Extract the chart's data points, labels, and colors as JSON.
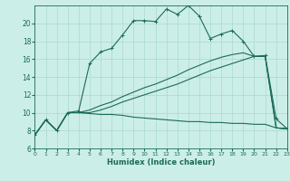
{
  "bg_color": "#cceee8",
  "line_color": "#1a6b5a",
  "grid_color": "#aad8d2",
  "xlabel": "Humidex (Indice chaleur)",
  "xlim": [
    0,
    23
  ],
  "ylim": [
    6,
    22
  ],
  "yticks": [
    6,
    8,
    10,
    12,
    14,
    16,
    18,
    20
  ],
  "xticks": [
    0,
    1,
    2,
    3,
    4,
    5,
    6,
    7,
    8,
    9,
    10,
    11,
    12,
    13,
    14,
    15,
    16,
    17,
    18,
    19,
    20,
    21,
    22,
    23
  ],
  "line1_x": [
    0,
    1,
    2,
    3,
    4,
    5,
    6,
    7,
    8,
    9,
    10,
    11,
    12,
    13,
    14,
    15,
    16,
    17,
    18,
    19,
    20,
    21,
    22,
    23
  ],
  "line1_y": [
    7.5,
    9.2,
    8.0,
    10.0,
    10.2,
    15.5,
    16.8,
    17.2,
    18.7,
    20.3,
    20.3,
    20.2,
    21.6,
    21.0,
    22.0,
    20.8,
    18.3,
    18.8,
    19.2,
    18.0,
    16.3,
    16.4,
    9.3,
    8.2
  ],
  "line2_x": [
    0,
    1,
    2,
    3,
    4,
    5,
    6,
    7,
    8,
    9,
    10,
    11,
    12,
    13,
    14,
    15,
    16,
    17,
    18,
    19,
    20,
    21,
    22,
    23
  ],
  "line2_y": [
    7.5,
    9.2,
    8.0,
    10.0,
    10.0,
    10.3,
    10.8,
    11.2,
    11.8,
    12.3,
    12.8,
    13.2,
    13.7,
    14.2,
    14.8,
    15.3,
    15.8,
    16.2,
    16.5,
    16.7,
    16.3,
    16.3,
    8.3,
    8.2
  ],
  "line3_x": [
    0,
    1,
    2,
    3,
    4,
    5,
    6,
    7,
    8,
    9,
    10,
    11,
    12,
    13,
    14,
    15,
    16,
    17,
    18,
    19,
    20,
    21,
    22,
    23
  ],
  "line3_y": [
    7.5,
    9.2,
    8.0,
    10.0,
    10.0,
    10.0,
    10.3,
    10.7,
    11.2,
    11.6,
    12.0,
    12.4,
    12.8,
    13.2,
    13.7,
    14.2,
    14.7,
    15.1,
    15.5,
    15.9,
    16.3,
    16.3,
    8.3,
    8.2
  ],
  "line4_x": [
    0,
    1,
    2,
    3,
    4,
    5,
    6,
    7,
    8,
    9,
    10,
    11,
    12,
    13,
    14,
    15,
    16,
    17,
    18,
    19,
    20,
    21,
    22,
    23
  ],
  "line4_y": [
    7.5,
    9.2,
    8.0,
    10.0,
    10.0,
    9.9,
    9.8,
    9.8,
    9.7,
    9.5,
    9.4,
    9.3,
    9.2,
    9.1,
    9.0,
    9.0,
    8.9,
    8.9,
    8.8,
    8.8,
    8.7,
    8.7,
    8.3,
    8.2
  ]
}
